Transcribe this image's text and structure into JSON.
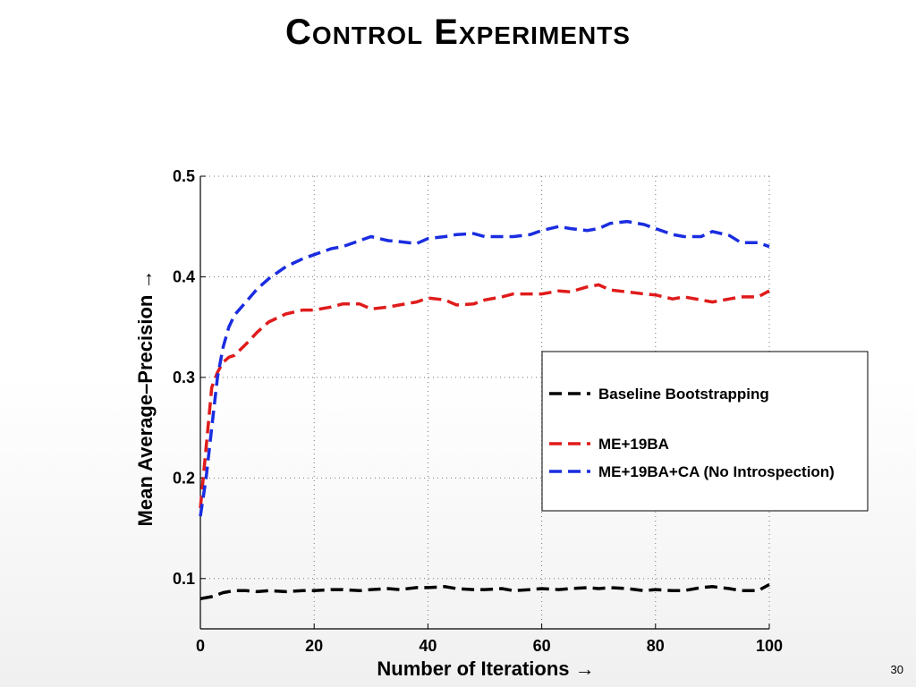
{
  "slide": {
    "title": "Control Experiments",
    "page_number": "30"
  },
  "chart_data": {
    "type": "line",
    "title": "",
    "xlabel": "Number of Iterations →",
    "ylabel": "Mean Average–Precision →",
    "xlim": [
      0,
      100
    ],
    "ylim": [
      0.05,
      0.5
    ],
    "x_ticks": [
      "0",
      "20",
      "40",
      "60",
      "80",
      "100"
    ],
    "y_ticks": [
      "0.1",
      "0.2",
      "0.3",
      "0.4",
      "0.5"
    ],
    "grid": true,
    "legend": "right",
    "x": [
      0,
      1,
      2,
      3,
      4,
      5,
      6,
      8,
      10,
      12,
      15,
      18,
      20,
      23,
      25,
      28,
      30,
      33,
      35,
      38,
      40,
      43,
      45,
      48,
      50,
      53,
      55,
      58,
      60,
      63,
      65,
      68,
      70,
      72,
      75,
      78,
      80,
      83,
      85,
      88,
      90,
      93,
      95,
      98,
      100
    ],
    "series": [
      {
        "name": "Baseline Bootstrapping",
        "color": "#000000",
        "values": [
          0.08,
          0.081,
          0.082,
          0.084,
          0.086,
          0.087,
          0.088,
          0.088,
          0.087,
          0.088,
          0.087,
          0.088,
          0.088,
          0.089,
          0.089,
          0.088,
          0.089,
          0.09,
          0.089,
          0.091,
          0.091,
          0.092,
          0.09,
          0.089,
          0.089,
          0.09,
          0.088,
          0.089,
          0.09,
          0.089,
          0.09,
          0.091,
          0.09,
          0.091,
          0.09,
          0.088,
          0.089,
          0.088,
          0.088,
          0.091,
          0.092,
          0.09,
          0.088,
          0.088,
          0.094
        ]
      },
      {
        "name": "ME+19BA",
        "color": "#e01b1b",
        "values": [
          0.17,
          0.23,
          0.29,
          0.305,
          0.315,
          0.32,
          0.322,
          0.333,
          0.345,
          0.355,
          0.363,
          0.367,
          0.367,
          0.37,
          0.373,
          0.373,
          0.368,
          0.37,
          0.372,
          0.375,
          0.379,
          0.377,
          0.372,
          0.373,
          0.377,
          0.38,
          0.383,
          0.383,
          0.383,
          0.386,
          0.385,
          0.39,
          0.392,
          0.387,
          0.385,
          0.383,
          0.382,
          0.378,
          0.38,
          0.377,
          0.375,
          0.378,
          0.38,
          0.38,
          0.386
        ]
      },
      {
        "name": "ME+19BA+CA (No Introspection)",
        "color": "#1a2de0",
        "values": [
          0.162,
          0.2,
          0.25,
          0.3,
          0.33,
          0.35,
          0.362,
          0.375,
          0.388,
          0.398,
          0.41,
          0.418,
          0.422,
          0.428,
          0.43,
          0.436,
          0.44,
          0.436,
          0.435,
          0.433,
          0.438,
          0.44,
          0.442,
          0.443,
          0.44,
          0.44,
          0.44,
          0.442,
          0.446,
          0.45,
          0.448,
          0.446,
          0.448,
          0.453,
          0.455,
          0.452,
          0.448,
          0.442,
          0.44,
          0.44,
          0.445,
          0.441,
          0.434,
          0.434,
          0.43
        ]
      }
    ]
  }
}
